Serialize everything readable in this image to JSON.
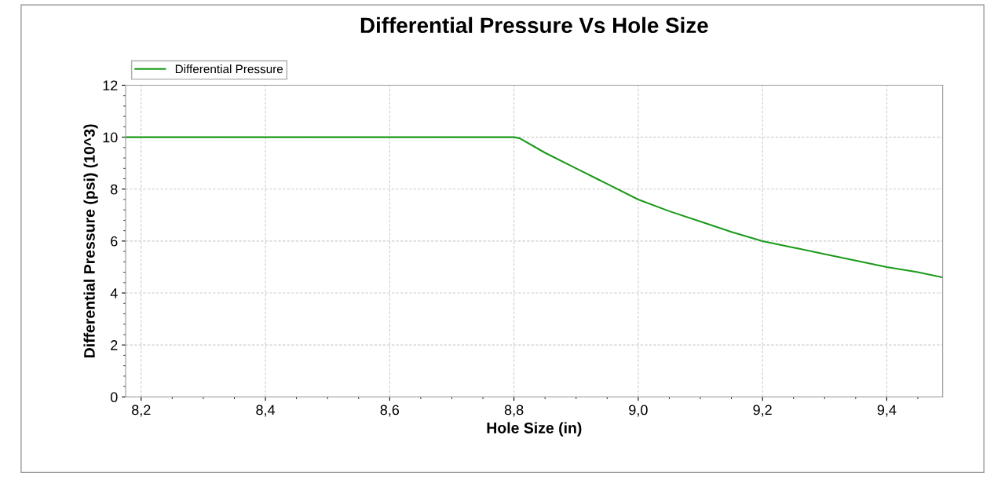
{
  "chart_data": {
    "type": "line",
    "title": "Differential Pressure Vs Hole Size",
    "xlabel": "Hole Size (in)",
    "ylabel": "Differential Pressure (psi) (10^3)",
    "series": [
      {
        "name": "Differential Pressure",
        "color": "#1a9a1a",
        "x": [
          8.175,
          8.3,
          8.5,
          8.7,
          8.8,
          8.81,
          8.85,
          8.9,
          8.95,
          9.0,
          9.05,
          9.1,
          9.15,
          9.2,
          9.25,
          9.3,
          9.35,
          9.4,
          9.45,
          9.49
        ],
        "values": [
          10,
          10,
          10,
          10,
          10,
          9.95,
          9.4,
          8.8,
          8.2,
          7.6,
          7.15,
          6.75,
          6.35,
          6.0,
          5.75,
          5.5,
          5.25,
          5.0,
          4.8,
          4.6
        ]
      }
    ],
    "xlim": [
      8.175,
      9.49
    ],
    "xticks": [
      {
        "value": 8.2,
        "label": "8,2"
      },
      {
        "value": 8.4,
        "label": "8,4"
      },
      {
        "value": 8.6,
        "label": "8,6"
      },
      {
        "value": 8.8,
        "label": "8,8"
      },
      {
        "value": 9.0,
        "label": "9,0"
      },
      {
        "value": 9.2,
        "label": "9,2"
      },
      {
        "value": 9.4,
        "label": "9,4"
      }
    ],
    "ylim": [
      0,
      12
    ],
    "yticks": [
      0,
      2,
      4,
      6,
      8,
      10,
      12
    ],
    "grid": true,
    "legend": "top left",
    "line_style": "solid",
    "marker": "none"
  }
}
